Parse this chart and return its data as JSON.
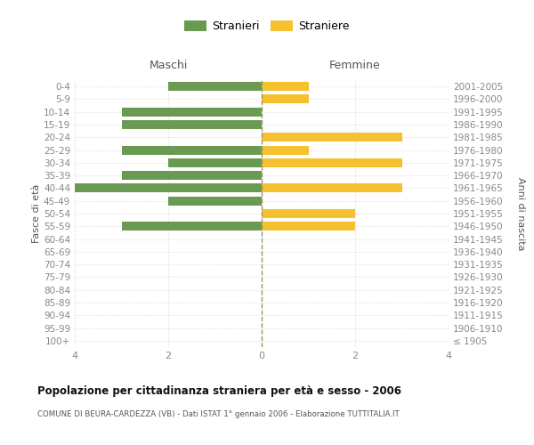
{
  "age_groups": [
    "100+",
    "95-99",
    "90-94",
    "85-89",
    "80-84",
    "75-79",
    "70-74",
    "65-69",
    "60-64",
    "55-59",
    "50-54",
    "45-49",
    "40-44",
    "35-39",
    "30-34",
    "25-29",
    "20-24",
    "15-19",
    "10-14",
    "5-9",
    "0-4"
  ],
  "birth_years": [
    "≤ 1905",
    "1906-1910",
    "1911-1915",
    "1916-1920",
    "1921-1925",
    "1926-1930",
    "1931-1935",
    "1936-1940",
    "1941-1945",
    "1946-1950",
    "1951-1955",
    "1956-1960",
    "1961-1965",
    "1966-1970",
    "1971-1975",
    "1976-1980",
    "1981-1985",
    "1986-1990",
    "1991-1995",
    "1996-2000",
    "2001-2005"
  ],
  "maschi": [
    0,
    0,
    0,
    0,
    0,
    0,
    0,
    0,
    0,
    3,
    0,
    2,
    4,
    3,
    2,
    3,
    0,
    3,
    3,
    0,
    2
  ],
  "femmine": [
    0,
    0,
    0,
    0,
    0,
    0,
    0,
    0,
    0,
    2,
    2,
    0,
    3,
    0,
    3,
    1,
    3,
    0,
    0,
    1,
    1
  ],
  "color_maschi": "#6a9a52",
  "color_femmine": "#f5c12e",
  "title": "Popolazione per cittadinanza straniera per età e sesso - 2006",
  "subtitle": "COMUNE DI BEURA-CARDEZZA (VB) - Dati ISTAT 1° gennaio 2006 - Elaborazione TUTTITALIA.IT",
  "xlabel_left": "Maschi",
  "xlabel_right": "Femmine",
  "ylabel_left": "Fasce di età",
  "ylabel_right": "Anni di nascita",
  "legend_stranieri": "Stranieri",
  "legend_straniere": "Straniere",
  "xlim": 4,
  "background_color": "#ffffff",
  "grid_color": "#dddddd",
  "center_line_color": "#999966",
  "bar_height": 0.7,
  "tick_color": "#888888",
  "label_color": "#555555",
  "title_color": "#111111",
  "subtitle_color": "#555555"
}
